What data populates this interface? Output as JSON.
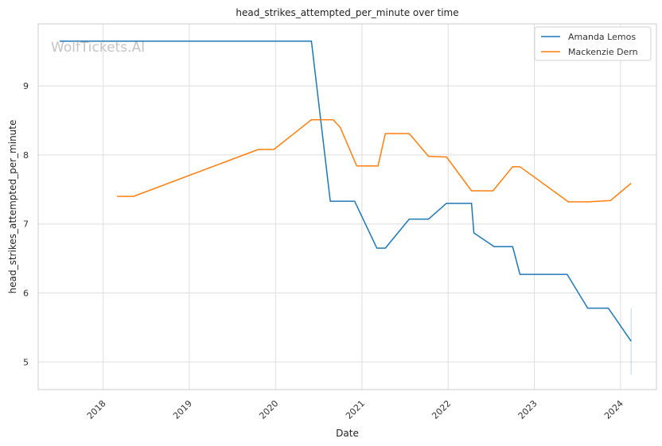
{
  "chart_data": {
    "type": "line",
    "title": "head_strikes_attempted_per_minute over time",
    "xlabel": "Date",
    "ylabel": "head_strikes_attempted_per_minute",
    "watermark": "WolfTickets.AI",
    "x_ticks": [
      "2018",
      "2019",
      "2020",
      "2021",
      "2022",
      "2023",
      "2024"
    ],
    "y_ticks": [
      "5",
      "6",
      "7",
      "8",
      "9"
    ],
    "xlim": [
      "2017-04-01",
      "2024-06-01"
    ],
    "ylim": [
      4.6,
      9.9
    ],
    "grid": true,
    "legend_position": "top-right",
    "series": [
      {
        "name": "Amanda Lemos",
        "color": "#1f77b4",
        "points": [
          [
            "2017-07-01",
            9.65
          ],
          [
            "2020-06-01",
            9.65
          ],
          [
            "2020-08-20",
            7.33
          ],
          [
            "2020-12-01",
            7.33
          ],
          [
            "2021-03-05",
            6.65
          ],
          [
            "2021-04-10",
            6.65
          ],
          [
            "2021-07-20",
            7.07
          ],
          [
            "2021-10-10",
            7.07
          ],
          [
            "2021-12-25",
            7.3
          ],
          [
            "2022-04-10",
            7.3
          ],
          [
            "2022-04-20",
            6.87
          ],
          [
            "2022-07-15",
            6.67
          ],
          [
            "2022-10-01",
            6.67
          ],
          [
            "2022-11-01",
            6.27
          ],
          [
            "2023-05-20",
            6.27
          ],
          [
            "2023-08-15",
            5.78
          ],
          [
            "2023-11-10",
            5.78
          ],
          [
            "2024-02-15",
            5.3
          ]
        ]
      },
      {
        "name": "Mackenzie Dern",
        "color": "#ff7f0e",
        "points": [
          [
            "2018-03-01",
            7.4
          ],
          [
            "2018-05-10",
            7.4
          ],
          [
            "2019-10-20",
            8.08
          ],
          [
            "2019-12-25",
            8.08
          ],
          [
            "2020-06-01",
            8.51
          ],
          [
            "2020-09-01",
            8.51
          ],
          [
            "2020-10-01",
            8.4
          ],
          [
            "2020-12-10",
            7.84
          ],
          [
            "2021-03-10",
            7.84
          ],
          [
            "2021-04-10",
            8.31
          ],
          [
            "2021-07-20",
            8.31
          ],
          [
            "2021-10-10",
            7.98
          ],
          [
            "2021-12-25",
            7.97
          ],
          [
            "2022-04-10",
            7.48
          ],
          [
            "2022-07-10",
            7.48
          ],
          [
            "2022-10-01",
            7.83
          ],
          [
            "2022-11-01",
            7.83
          ],
          [
            "2023-05-25",
            7.32
          ],
          [
            "2023-08-20",
            7.32
          ],
          [
            "2023-11-20",
            7.34
          ],
          [
            "2024-02-15",
            7.59
          ]
        ]
      }
    ],
    "error_bar": {
      "x": "2024-02-15",
      "low": 4.82,
      "high": 5.78,
      "color": "#1f77b4"
    }
  }
}
